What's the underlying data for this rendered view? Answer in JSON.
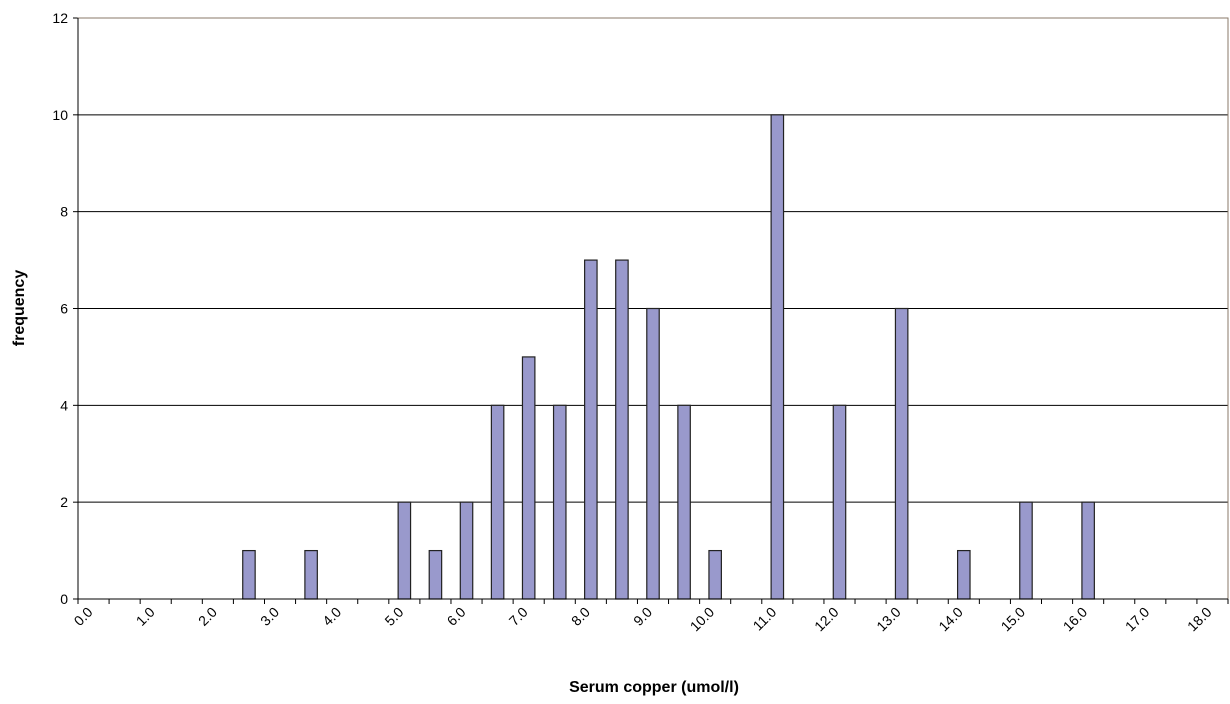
{
  "chart_data": {
    "type": "bar",
    "x_label": "Serum copper (umol/l)",
    "y_label": "frequency",
    "categories": [
      "0.0",
      null,
      "1.0",
      null,
      "2.0",
      null,
      "3.0",
      null,
      "4.0",
      null,
      "5.0",
      null,
      "6.0",
      null,
      "7.0",
      null,
      "8.0",
      null,
      "9.0",
      null,
      "10.0",
      null,
      "11.0",
      null,
      "12.0",
      null,
      "13.0",
      null,
      "14.0",
      null,
      "15.0",
      null,
      "16.0",
      null,
      "17.0",
      null,
      "18.0"
    ],
    "values": [
      0,
      0,
      0,
      0,
      0,
      1,
      0,
      1,
      0,
      0,
      2,
      1,
      2,
      4,
      5,
      4,
      7,
      7,
      6,
      4,
      1,
      0,
      10,
      0,
      4,
      0,
      6,
      0,
      1,
      0,
      2,
      0,
      2,
      0,
      0,
      0,
      0
    ],
    "color": "#9999cc",
    "ylim": [
      0,
      12
    ],
    "yticks": [
      0,
      2,
      4,
      6,
      8,
      10,
      12
    ],
    "grid": true
  }
}
